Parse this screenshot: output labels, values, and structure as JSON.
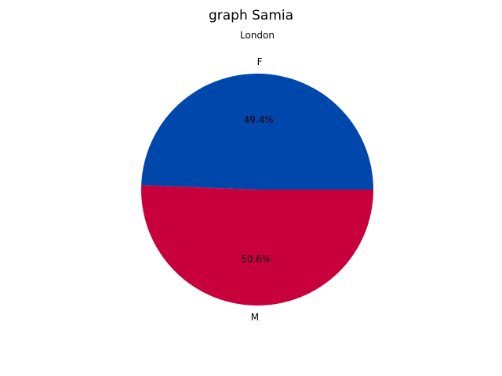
{
  "chart_data": {
    "type": "pie",
    "title": "graph Samia",
    "subtitle": "London",
    "slices": [
      {
        "label": "F",
        "value": 49.4,
        "pct_label": "49.4%",
        "color": "#0047ab"
      },
      {
        "label": "M",
        "value": 50.6,
        "pct_label": "50.6%",
        "color": "#c8003c"
      }
    ],
    "start_angle_deg": 0,
    "direction": "counterclockwise",
    "legend": "none"
  }
}
